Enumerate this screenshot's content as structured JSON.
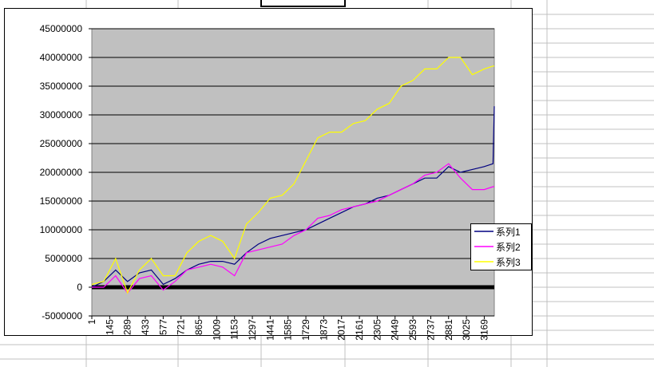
{
  "chart_data": {
    "type": "line",
    "x": [
      1,
      97,
      193,
      289,
      385,
      481,
      577,
      673,
      769,
      865,
      961,
      1057,
      1153,
      1249,
      1345,
      1441,
      1537,
      1633,
      1729,
      1825,
      1921,
      2017,
      2113,
      2209,
      2305,
      2401,
      2497,
      2593,
      2689,
      2785,
      2881,
      2977,
      3073,
      3169,
      3240,
      3250
    ],
    "series": [
      {
        "name": "系列1",
        "color": "#000080",
        "values": [
          0,
          1000000,
          3000000,
          1000000,
          2500000,
          3000000,
          500000,
          1500000,
          3000000,
          4000000,
          4500000,
          4500000,
          4000000,
          6000000,
          7500000,
          8500000,
          9000000,
          9500000,
          10000000,
          11000000,
          12000000,
          13000000,
          14000000,
          14500000,
          15500000,
          16000000,
          17000000,
          18000000,
          19000000,
          19000000,
          21000000,
          20000000,
          20500000,
          21000000,
          21500000,
          31500000
        ]
      },
      {
        "name": "系列2",
        "color": "#ff00ff",
        "values": [
          0,
          0,
          2000000,
          -1000000,
          1500000,
          2000000,
          -500000,
          1000000,
          3000000,
          3500000,
          4000000,
          3500000,
          2000000,
          6000000,
          6500000,
          7000000,
          7500000,
          9000000,
          10000000,
          12000000,
          12500000,
          13500000,
          14000000,
          14500000,
          15000000,
          16000000,
          17000000,
          18000000,
          19500000,
          20000000,
          21500000,
          19000000,
          17000000,
          17000000,
          17500000,
          17500000
        ]
      },
      {
        "name": "系列3",
        "color": "#ffff00",
        "values": [
          500000,
          1000000,
          5000000,
          -1000000,
          3000000,
          5000000,
          2000000,
          2000000,
          6000000,
          8000000,
          9000000,
          8000000,
          5000000,
          11000000,
          13000000,
          15500000,
          16000000,
          18000000,
          22000000,
          26000000,
          27000000,
          27000000,
          28500000,
          29000000,
          31000000,
          32000000,
          35000000,
          36000000,
          38000000,
          38000000,
          40000000,
          40000000,
          37000000,
          38000000,
          38500000,
          38500000
        ]
      }
    ],
    "xlim": [
      1,
      3250
    ],
    "xticks": [
      1,
      145,
      289,
      433,
      577,
      721,
      865,
      1009,
      1153,
      1297,
      1441,
      1585,
      1729,
      1873,
      2017,
      2161,
      2305,
      2449,
      2593,
      2737,
      2881,
      3025,
      3169
    ],
    "ylim": [
      -5000000,
      45000000
    ],
    "yticks": [
      -5000000,
      0,
      5000000,
      10000000,
      15000000,
      20000000,
      25000000,
      30000000,
      35000000,
      40000000,
      45000000
    ],
    "grid": true,
    "legend": "right"
  }
}
